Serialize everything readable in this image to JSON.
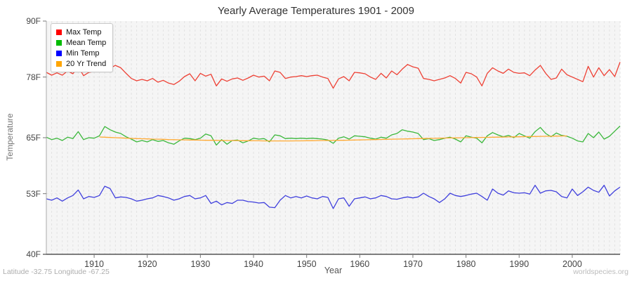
{
  "title": "Yearly Average Temperatures 1901 - 2009",
  "x_axis": {
    "label": "Year",
    "ticks": [
      1910,
      1920,
      1930,
      1940,
      1950,
      1960,
      1970,
      1980,
      1990,
      2000
    ]
  },
  "y_axis": {
    "label": "Temperature",
    "ticks": [
      {
        "value": 40,
        "label": "40F"
      },
      {
        "value": 53,
        "label": "53F"
      },
      {
        "value": 65,
        "label": "65F"
      },
      {
        "value": 78,
        "label": "78F"
      },
      {
        "value": 90,
        "label": "90F"
      }
    ]
  },
  "footer": {
    "left": "Latitude -32.75 Longitude -67.25",
    "right": "worldspecies.org"
  },
  "legend": [
    {
      "label": "Max Temp",
      "color": "#ff0000"
    },
    {
      "label": "Mean Temp",
      "color": "#00bb00"
    },
    {
      "label": "Min Temp",
      "color": "#0000ff"
    },
    {
      "label": "20 Yr Trend",
      "color": "#ffa500"
    }
  ],
  "colors": {
    "plot_bg": "#f5f5f5",
    "grid": "#e2e2e2",
    "hgrid": "#e7e7e7",
    "axis": "#555555",
    "yaxis_line": "#aaaaaa",
    "tick": "#777777"
  },
  "chart_data": {
    "type": "line",
    "x_start": 1901,
    "x_end": 2009,
    "ylim": [
      40,
      90
    ],
    "grid": "vertical-dashed-per-year",
    "legend_position": "top-left",
    "series": [
      {
        "name": "Max Temp",
        "color": "#ee4135",
        "x_start": 1901,
        "values": [
          79.0,
          78.4,
          78.9,
          78.4,
          79.3,
          78.7,
          80.2,
          78.3,
          79.0,
          79.2,
          79.6,
          81.1,
          79.9,
          80.5,
          80.0,
          78.8,
          77.7,
          77.2,
          77.5,
          77.2,
          77.7,
          76.9,
          77.3,
          76.7,
          76.4,
          77.1,
          78.1,
          78.7,
          77.2,
          78.8,
          78.2,
          78.6,
          76.1,
          77.6,
          77.1,
          77.6,
          77.8,
          77.3,
          77.8,
          78.4,
          78.0,
          78.2,
          77.2,
          79.3,
          79.0,
          77.7,
          78.0,
          78.1,
          78.3,
          78.1,
          78.3,
          78.4,
          78.0,
          77.7,
          75.6,
          77.6,
          78.1,
          77.2,
          79.0,
          78.9,
          78.7,
          78.0,
          77.5,
          78.8,
          77.8,
          79.3,
          78.5,
          79.7,
          80.7,
          80.2,
          79.9,
          77.7,
          77.5,
          77.2,
          77.5,
          77.8,
          78.3,
          77.7,
          76.7,
          79.0,
          78.7,
          78.0,
          76.1,
          78.8,
          80.0,
          79.3,
          78.8,
          79.7,
          79.0,
          78.8,
          78.9,
          78.3,
          79.5,
          80.5,
          78.8,
          77.5,
          77.8,
          79.7,
          78.5,
          78.0,
          77.5,
          77.0,
          80.3,
          78.0,
          80.0,
          78.3,
          79.6,
          78.1,
          81.2
        ]
      },
      {
        "name": "Mean Temp",
        "color": "#3cb83c",
        "x_start": 1901,
        "values": [
          65.1,
          64.6,
          64.9,
          64.4,
          65.1,
          64.8,
          66.3,
          64.6,
          65.0,
          64.9,
          65.4,
          67.4,
          66.7,
          66.2,
          65.9,
          65.2,
          64.7,
          64.1,
          64.4,
          64.1,
          64.6,
          64.2,
          64.4,
          63.9,
          63.6,
          64.3,
          64.9,
          64.8,
          64.6,
          64.9,
          65.8,
          65.4,
          63.4,
          64.6,
          63.6,
          64.4,
          64.5,
          63.9,
          64.3,
          64.9,
          64.7,
          64.8,
          64.1,
          65.6,
          65.4,
          64.8,
          64.9,
          64.8,
          64.9,
          64.8,
          64.9,
          64.8,
          64.7,
          64.5,
          63.8,
          64.9,
          65.2,
          64.7,
          65.4,
          65.3,
          65.2,
          64.9,
          64.7,
          65.1,
          64.9,
          65.6,
          65.9,
          66.7,
          66.4,
          66.2,
          65.9,
          64.6,
          64.8,
          64.4,
          64.6,
          64.9,
          65.1,
          64.7,
          64.1,
          65.4,
          65.1,
          64.9,
          63.9,
          65.4,
          66.1,
          65.6,
          65.2,
          65.5,
          65.0,
          65.9,
          65.4,
          64.9,
          66.3,
          67.2,
          65.9,
          65.2,
          66.0,
          65.5,
          65.3,
          64.9,
          64.3,
          64.1,
          65.9,
          65.0,
          66.2,
          64.7,
          65.3,
          66.4,
          67.5
        ]
      },
      {
        "name": "Min Temp",
        "color": "#4040dd",
        "x_start": 1901,
        "values": [
          51.9,
          51.6,
          52.1,
          51.4,
          52.1,
          52.6,
          53.8,
          51.9,
          52.4,
          52.2,
          52.6,
          54.6,
          54.1,
          52.1,
          52.3,
          52.2,
          51.9,
          51.4,
          51.6,
          51.9,
          52.1,
          52.6,
          52.4,
          52.1,
          51.6,
          51.9,
          52.4,
          52.6,
          51.9,
          52.1,
          52.6,
          50.9,
          51.4,
          50.6,
          51.1,
          50.9,
          51.6,
          51.6,
          51.3,
          51.2,
          51.0,
          51.1,
          50.1,
          50.0,
          51.6,
          52.6,
          52.1,
          52.4,
          52.1,
          52.5,
          52.1,
          51.9,
          52.4,
          52.2,
          49.8,
          51.9,
          52.1,
          50.3,
          51.9,
          52.1,
          52.3,
          51.9,
          52.1,
          52.6,
          52.4,
          51.9,
          51.8,
          52.1,
          52.3,
          52.1,
          52.3,
          53.1,
          52.4,
          51.9,
          51.1,
          51.9,
          53.1,
          52.6,
          52.4,
          52.6,
          52.9,
          53.1,
          52.4,
          51.6,
          54.0,
          53.1,
          52.7,
          53.6,
          53.2,
          53.1,
          53.2,
          52.9,
          54.8,
          53.1,
          53.6,
          53.7,
          53.4,
          52.4,
          52.1,
          54.0,
          52.6,
          53.4,
          54.4,
          53.7,
          53.3,
          54.8,
          52.5,
          53.6,
          54.4
        ]
      },
      {
        "name": "20 Yr Trend",
        "color": "#ffaa33",
        "x_start": 1911,
        "values": [
          65.15,
          65.1,
          65.05,
          65.0,
          64.95,
          64.9,
          64.85,
          64.8,
          64.78,
          64.75,
          64.7,
          64.68,
          64.65,
          64.6,
          64.58,
          64.55,
          64.53,
          64.5,
          64.5,
          64.48,
          64.45,
          64.45,
          64.43,
          64.4,
          64.4,
          64.38,
          64.38,
          64.35,
          64.35,
          64.33,
          64.33,
          64.3,
          64.3,
          64.3,
          64.3,
          64.3,
          64.3,
          64.32,
          64.32,
          64.35,
          64.35,
          64.38,
          64.4,
          64.4,
          64.42,
          64.45,
          64.45,
          64.48,
          64.5,
          64.52,
          64.55,
          64.58,
          64.6,
          64.62,
          64.65,
          64.68,
          64.7,
          64.72,
          64.75,
          64.78,
          64.8,
          64.82,
          64.85,
          64.87,
          64.9,
          64.92,
          64.94,
          64.96,
          64.98,
          65.0,
          65.02,
          65.04,
          65.06,
          65.08,
          65.1,
          65.12,
          65.14,
          65.16,
          65.18,
          65.2,
          65.22,
          65.24,
          65.26,
          65.28,
          65.3,
          65.32,
          65.34,
          65.36,
          65.38
        ]
      }
    ]
  }
}
